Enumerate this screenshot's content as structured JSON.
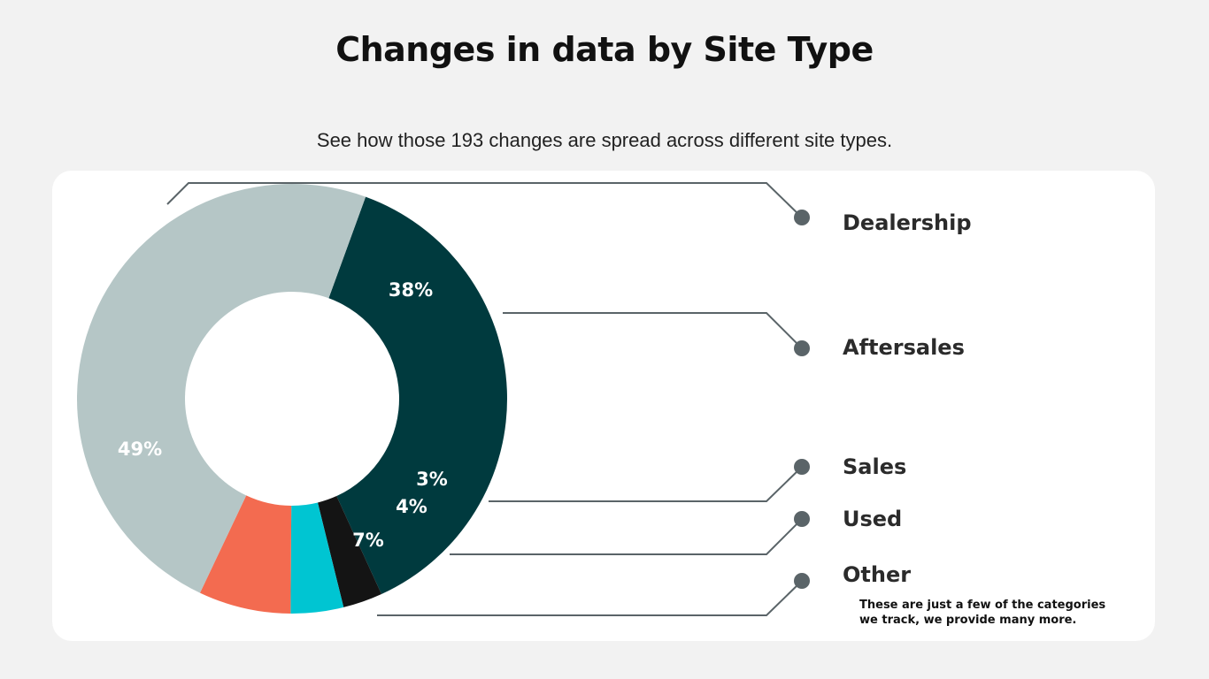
{
  "title": "Changes in data by Site Type",
  "subtitle": "See how those 193 changes are spread across different site types.",
  "note": "These are just a few of the categories we track, we provide many more.",
  "chart_data": {
    "type": "pie",
    "variant": "donut",
    "legend_placement": "right",
    "slices": [
      {
        "name": "Dealership",
        "value": 49,
        "label": "49%",
        "color": "#b5c6c6"
      },
      {
        "name": "Aftersales",
        "value": 38,
        "label": "38%",
        "color": "#003a3e"
      },
      {
        "name": "Sales",
        "value": 3,
        "label": "3%",
        "color": "#141414"
      },
      {
        "name": "Used",
        "value": 4,
        "label": "4%",
        "color": "#00c5d2"
      },
      {
        "name": "Other",
        "value": 7,
        "label": "7%",
        "color": "#f36b50"
      }
    ]
  },
  "colors": {
    "leader_line": "#5a6468",
    "legend_dot": "#5a6468"
  }
}
